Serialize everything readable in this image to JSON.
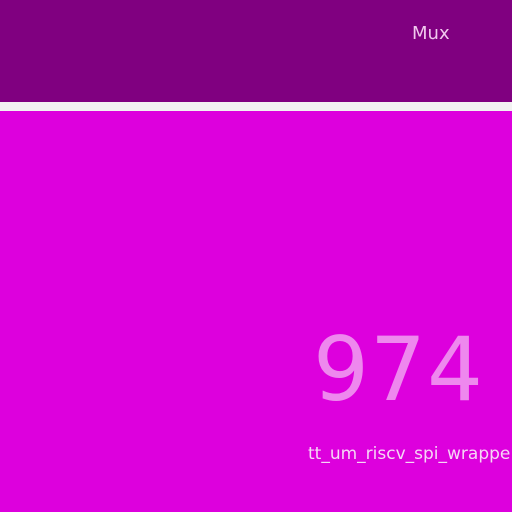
{
  "header": {
    "title": "Mux"
  },
  "panel": {
    "value": "974",
    "caption": "tt_um_riscv_spi_wrappe"
  },
  "colors": {
    "header_bg": "#800080",
    "divider": "#f2f2f2",
    "panel_bg": "#dd00dd",
    "value_text": "#ee88ee",
    "caption_text": "#f6d6f6",
    "title_text": "#f0c8ee"
  }
}
